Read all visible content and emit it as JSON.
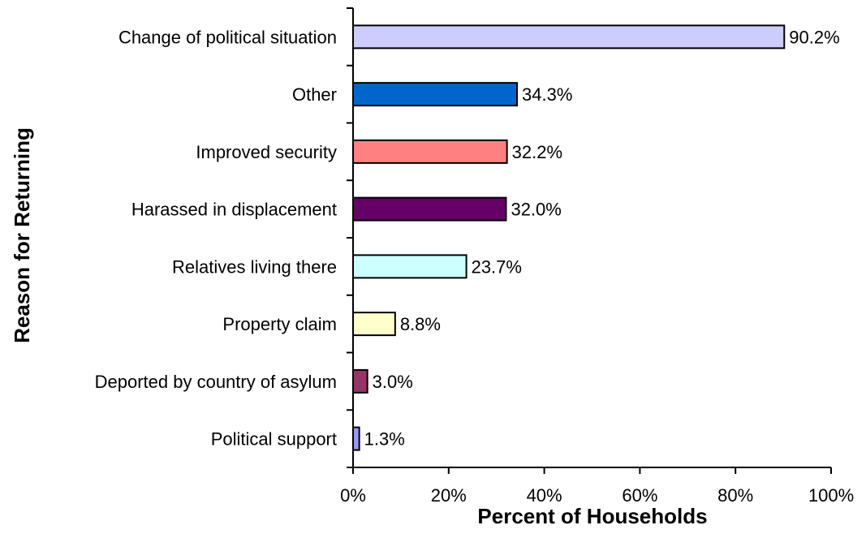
{
  "chart_data": {
    "type": "bar",
    "orientation": "horizontal",
    "title": "",
    "xlabel": "Percent of Households",
    "ylabel": "Reason for Returning",
    "xlim": [
      0,
      100
    ],
    "x_ticks": [
      "0%",
      "20%",
      "40%",
      "60%",
      "80%",
      "100%"
    ],
    "grid": false,
    "legend": "none",
    "bars": [
      {
        "category": "Change of political situation",
        "value": 90.2,
        "label": "90.2%",
        "color": "#ccccff"
      },
      {
        "category": "Other",
        "value": 34.3,
        "label": "34.3%",
        "color": "#0066cc"
      },
      {
        "category": "Improved security",
        "value": 32.2,
        "label": "32.2%",
        "color": "#ff8080"
      },
      {
        "category": "Harassed in displacement",
        "value": 32.0,
        "label": "32.0%",
        "color": "#660066"
      },
      {
        "category": "Relatives living there",
        "value": 23.7,
        "label": "23.7%",
        "color": "#ccffff"
      },
      {
        "category": "Property claim",
        "value": 8.8,
        "label": "8.8%",
        "color": "#ffffcc"
      },
      {
        "category": "Deported by country of asylum",
        "value": 3.0,
        "label": "3.0%",
        "color": "#993366"
      },
      {
        "category": "Political support",
        "value": 1.3,
        "label": "1.3%",
        "color": "#9999ff"
      }
    ]
  }
}
